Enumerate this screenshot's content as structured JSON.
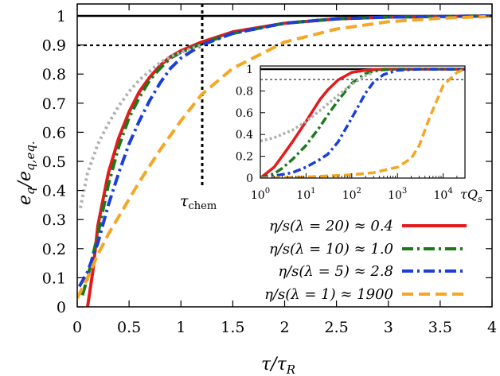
{
  "chart_data": {
    "type": "line",
    "xlabel": "τ/τ_R",
    "ylabel": "e_q/e_q,eq.",
    "xlim": [
      0,
      4
    ],
    "ylim": [
      0,
      1.05
    ],
    "x_ticks": [
      "0",
      "0.5",
      "1",
      "1.5",
      "2",
      "2.5",
      "3",
      "3.5",
      "4"
    ],
    "y_ticks": [
      "0",
      "0.1",
      "0.2",
      "0.3",
      "0.4",
      "0.5",
      "0.6",
      "0.7",
      "0.8",
      "0.9",
      "1"
    ],
    "grid": false,
    "reference_lines": [
      {
        "axis": "y",
        "value": 1.0,
        "style": "solid"
      },
      {
        "axis": "y",
        "value": 0.9,
        "style": "dotted"
      },
      {
        "axis": "x",
        "value": 1.2,
        "style": "dotted",
        "label": "τ_chem"
      }
    ],
    "legend_placement": "bottom-right",
    "series": [
      {
        "name": "η/s(λ = 20) ≈ 0.4",
        "color": "#e41a1c",
        "dash": "solid",
        "x": [
          0.1,
          0.15,
          0.2,
          0.3,
          0.4,
          0.5,
          0.6,
          0.7,
          0.8,
          0.9,
          1.0,
          1.2,
          1.5,
          2.0,
          2.5,
          3.0,
          3.5,
          4.0
        ],
        "y": [
          0.0,
          0.12,
          0.28,
          0.46,
          0.58,
          0.67,
          0.74,
          0.79,
          0.83,
          0.86,
          0.88,
          0.91,
          0.945,
          0.975,
          0.99,
          0.996,
          0.998,
          1.0
        ]
      },
      {
        "name": "η/s(λ = 10) ≈ 1.0",
        "color": "#1a7a1a",
        "dash": "dashdot",
        "x": [
          0.05,
          0.1,
          0.2,
          0.3,
          0.4,
          0.5,
          0.6,
          0.7,
          0.8,
          0.9,
          1.0,
          1.2,
          1.5,
          2.0,
          2.5,
          3.0,
          3.5,
          4.0
        ],
        "y": [
          0.04,
          0.1,
          0.25,
          0.42,
          0.55,
          0.65,
          0.72,
          0.78,
          0.82,
          0.855,
          0.875,
          0.905,
          0.94,
          0.975,
          0.99,
          0.996,
          0.998,
          1.0
        ]
      },
      {
        "name": "η/s(λ = 5)   ≈ 2.8",
        "color": "#1a3fd6",
        "dash": "dashdot",
        "x": [
          0.02,
          0.1,
          0.2,
          0.3,
          0.4,
          0.5,
          0.6,
          0.7,
          0.8,
          0.9,
          1.0,
          1.2,
          1.5,
          2.0,
          2.5,
          3.0,
          3.5,
          4.0
        ],
        "y": [
          0.07,
          0.12,
          0.22,
          0.35,
          0.46,
          0.56,
          0.64,
          0.71,
          0.77,
          0.82,
          0.855,
          0.9,
          0.94,
          0.975,
          0.99,
          0.996,
          0.998,
          1.0
        ]
      },
      {
        "name": "η/s(λ = 1) ≈ 1900",
        "color": "#f5a623",
        "dash": "dashed",
        "x": [
          0.0,
          0.1,
          0.2,
          0.3,
          0.4,
          0.5,
          0.6,
          0.8,
          1.0,
          1.2,
          1.5,
          2.0,
          2.5,
          3.0,
          3.5,
          4.0
        ],
        "y": [
          0.03,
          0.1,
          0.18,
          0.25,
          0.31,
          0.37,
          0.43,
          0.54,
          0.64,
          0.73,
          0.82,
          0.91,
          0.955,
          0.98,
          0.992,
          0.998
        ]
      },
      {
        "name": "",
        "color": "#b0b0b0",
        "dash": "dotted",
        "x": [
          0.03,
          0.1,
          0.2,
          0.3,
          0.4,
          0.5,
          0.6,
          0.7,
          0.8,
          0.9,
          1.0,
          1.2
        ],
        "y": [
          0.34,
          0.46,
          0.56,
          0.63,
          0.69,
          0.74,
          0.78,
          0.81,
          0.84,
          0.86,
          0.875,
          0.9
        ]
      }
    ],
    "inset": {
      "type": "line",
      "xlabel": "τQ_s",
      "xscale": "log",
      "xlim": [
        1,
        30000
      ],
      "ylim": [
        0,
        1.05
      ],
      "x_ticks": [
        "10^0",
        "10^1",
        "10^2",
        "10^3",
        "10^4"
      ],
      "y_ticks": [
        "0",
        "0.2",
        "0.4",
        "0.6",
        "0.8",
        "1"
      ],
      "reference_lines": [
        {
          "axis": "y",
          "value": 1.0,
          "style": "solid"
        },
        {
          "axis": "y",
          "value": 0.9,
          "style": "dotted"
        }
      ],
      "series": [
        {
          "color": "#e41a1c",
          "dash": "solid",
          "x": [
            1,
            2,
            3,
            5,
            10,
            20,
            30,
            50,
            100,
            200,
            500,
            1000,
            10000,
            30000
          ],
          "y": [
            0.0,
            0.1,
            0.2,
            0.33,
            0.52,
            0.72,
            0.81,
            0.9,
            0.97,
            0.99,
            1.0,
            1.0,
            1.0,
            1.0
          ]
        },
        {
          "color": "#1a7a1a",
          "dash": "dashdot",
          "x": [
            1,
            2,
            3,
            5,
            10,
            20,
            30,
            50,
            100,
            200,
            300,
            500,
            1000,
            30000
          ],
          "y": [
            0.0,
            0.04,
            0.09,
            0.17,
            0.3,
            0.47,
            0.58,
            0.71,
            0.87,
            0.96,
            0.98,
            0.995,
            1.0,
            1.0
          ]
        },
        {
          "color": "#1a3fd6",
          "dash": "dashdot",
          "x": [
            1,
            2,
            5,
            10,
            20,
            30,
            50,
            100,
            200,
            300,
            500,
            1000,
            3000,
            30000
          ],
          "y": [
            0.0,
            0.02,
            0.05,
            0.1,
            0.17,
            0.22,
            0.33,
            0.55,
            0.78,
            0.88,
            0.95,
            0.99,
            1.0,
            1.0
          ]
        },
        {
          "color": "#f5a623",
          "dash": "dashed",
          "x": [
            1,
            10,
            100,
            300,
            1000,
            2000,
            3000,
            5000,
            10000,
            20000,
            30000
          ],
          "y": [
            0.0,
            0.01,
            0.03,
            0.05,
            0.1,
            0.18,
            0.3,
            0.55,
            0.85,
            0.97,
            1.0
          ]
        },
        {
          "color": "#b0b0b0",
          "dash": "dotted",
          "x": [
            1,
            2,
            5,
            10,
            20,
            30,
            50,
            100,
            200,
            300
          ],
          "y": [
            0.34,
            0.37,
            0.44,
            0.52,
            0.62,
            0.68,
            0.76,
            0.86,
            0.94,
            0.97
          ]
        }
      ]
    }
  }
}
